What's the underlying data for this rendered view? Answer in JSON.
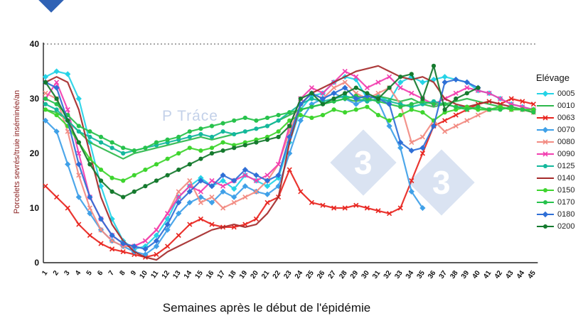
{
  "watermark": {
    "badge": "3",
    "text": "P Tráce"
  },
  "chart_data": {
    "type": "line",
    "title": "",
    "xlabel": "Semaines après le début de l'épidémie",
    "ylabel": "Porcelets sevrés/truie inséminée/an",
    "legend_title": "Elévage",
    "legend_position": "right",
    "grid": "dotted-top-only",
    "ylim": [
      0,
      40
    ],
    "yticks": [
      0,
      10,
      20,
      30,
      40
    ],
    "x": [
      1,
      2,
      3,
      4,
      5,
      6,
      7,
      8,
      9,
      10,
      11,
      12,
      13,
      14,
      15,
      16,
      17,
      18,
      19,
      20,
      21,
      22,
      23,
      24,
      25,
      26,
      27,
      28,
      29,
      30,
      31,
      32,
      33,
      34,
      35,
      36,
      37,
      38,
      39,
      40,
      41,
      42,
      43,
      44,
      45
    ],
    "series": [
      {
        "name": "0005",
        "color": "#25d3e6",
        "marker": "diamond",
        "values": [
          34,
          35,
          34.5,
          30,
          22,
          14,
          8,
          4,
          2.5,
          3,
          5,
          8,
          12,
          14,
          15.5,
          14,
          15,
          13.5,
          16,
          15,
          14,
          15.5,
          22,
          28,
          30.5,
          31,
          33,
          34,
          33.5,
          30,
          30.5,
          29.5,
          33,
          34,
          33,
          33.5,
          34,
          33.5,
          33,
          31.5,
          31,
          30,
          29,
          28.5,
          28
        ]
      },
      {
        "name": "0010",
        "color": "#2db84b",
        "marker": "line",
        "values": [
          28,
          27.5,
          26,
          24,
          22,
          21,
          20,
          19,
          20,
          20.5,
          21,
          21.5,
          22,
          22.5,
          23,
          22.5,
          23,
          23.5,
          24,
          24.5,
          25,
          26,
          27,
          28,
          28.5,
          29,
          29.5,
          30,
          29.5,
          30,
          30.5,
          30,
          29.5,
          30,
          29,
          28.5,
          29,
          29.5,
          30,
          29.5,
          29,
          28.5,
          28,
          28,
          27.5
        ]
      },
      {
        "name": "0063",
        "color": "#e8251f",
        "marker": "x",
        "values": [
          14,
          12,
          10,
          7,
          5,
          3.5,
          2.5,
          2,
          1.5,
          1,
          1.5,
          3,
          5,
          7,
          8,
          7,
          6.5,
          6.5,
          7,
          8,
          11,
          12,
          17,
          13,
          11,
          10.5,
          10,
          10,
          10.5,
          10,
          9.5,
          9,
          10,
          15,
          20,
          25,
          26,
          27,
          28,
          29,
          29.5,
          29,
          30,
          29.5,
          29
        ]
      },
      {
        "name": "0070",
        "color": "#3fa0e8",
        "marker": "diamond",
        "values": [
          26,
          24,
          18,
          12,
          9,
          6,
          4,
          3,
          2,
          1.5,
          3,
          6,
          9,
          11,
          12,
          11,
          13,
          12,
          14,
          13,
          12.5,
          14,
          20,
          26,
          29,
          30,
          31,
          30,
          29,
          30,
          29.5,
          25,
          21,
          13,
          10,
          null,
          null,
          null,
          null,
          null,
          null,
          null,
          null,
          null,
          null
        ]
      },
      {
        "name": "0080",
        "color": "#f28b82",
        "marker": "x",
        "values": [
          31,
          30,
          24,
          16,
          10,
          6,
          4,
          3,
          3,
          4,
          6,
          9,
          13,
          15,
          11,
          12,
          10,
          11,
          12,
          13,
          15,
          18,
          24,
          29,
          31,
          30,
          32,
          33,
          31,
          30,
          31,
          32,
          29,
          22,
          23,
          26,
          24,
          25,
          26,
          27,
          28,
          28.5,
          28,
          28,
          27.5
        ]
      },
      {
        "name": "0090",
        "color": "#f23fb0",
        "marker": "x",
        "values": [
          30,
          33,
          28,
          20,
          12,
          8,
          5,
          3.5,
          3,
          4,
          6,
          9,
          12,
          14,
          13,
          15,
          14,
          15,
          16,
          15,
          16,
          18,
          25,
          30,
          32,
          31,
          33,
          35,
          34,
          32,
          33,
          34,
          32,
          31,
          30,
          29,
          30,
          31,
          32,
          31.5,
          31,
          30,
          29,
          28.5,
          28
        ]
      },
      {
        "name": "0125",
        "color": "#14b89c",
        "marker": "circle",
        "values": [
          29,
          28,
          26,
          24,
          23,
          22,
          21,
          20,
          20.5,
          21,
          21.5,
          22,
          22.5,
          23,
          23.5,
          23,
          24,
          23.5,
          24,
          24.5,
          25,
          26,
          27.5,
          29,
          30,
          29.5,
          30,
          30.5,
          30,
          29.5,
          30,
          29.5,
          29,
          28.5,
          29,
          29.5,
          29,
          28.5,
          28.5,
          28,
          28,
          28.5,
          28,
          28,
          28
        ]
      },
      {
        "name": "0140",
        "color": "#a52a2a",
        "marker": "line",
        "values": [
          33,
          34,
          33,
          28,
          20,
          12,
          7,
          4,
          2,
          1,
          0.5,
          2,
          3,
          4,
          5,
          6,
          6.5,
          7,
          6.5,
          7,
          9,
          12,
          22,
          29,
          31,
          32,
          33,
          34,
          35,
          35.5,
          36,
          35,
          34,
          33.5,
          34,
          33,
          30,
          29,
          28.5,
          29,
          29.5,
          29,
          28.5,
          28,
          27.5
        ]
      },
      {
        "name": "0150",
        "color": "#3ed52e",
        "marker": "circle",
        "values": [
          28,
          27,
          25,
          22,
          19,
          17,
          15.5,
          15,
          16,
          17,
          18,
          19,
          20,
          21,
          20.5,
          21,
          22,
          21.5,
          22,
          22.5,
          23,
          24,
          26,
          27,
          26.5,
          27,
          28,
          27.5,
          28,
          28.5,
          27,
          26,
          27,
          28,
          27.5,
          26,
          27.5,
          28,
          28.5,
          28,
          28,
          28.5,
          28,
          28,
          28
        ]
      },
      {
        "name": "0170",
        "color": "#27c24c",
        "marker": "circle",
        "values": [
          30,
          29,
          27,
          25,
          24,
          23,
          22,
          21,
          20.5,
          21,
          22,
          22.5,
          23,
          24,
          24.5,
          25,
          25.5,
          26,
          26.5,
          26,
          26.5,
          27,
          27.5,
          28,
          28.5,
          29,
          29.5,
          30,
          30.5,
          30,
          29.5,
          29,
          28.5,
          29,
          29.5,
          29,
          29,
          28.5,
          28,
          28.5,
          28,
          28,
          28.5,
          28,
          27.5
        ]
      },
      {
        "name": "0180",
        "color": "#2f6fd6",
        "marker": "diamond",
        "values": [
          33,
          32,
          26,
          18,
          12,
          8,
          5,
          3.5,
          3,
          2.5,
          4,
          7,
          11,
          13,
          15,
          14,
          16,
          15,
          17,
          16,
          15,
          16,
          23,
          29,
          31,
          30,
          31,
          32,
          30,
          30.5,
          30,
          29,
          22,
          20.5,
          21,
          25,
          33,
          33.5,
          33,
          32,
          null,
          null,
          null,
          null,
          null
        ]
      },
      {
        "name": "0200",
        "color": "#157a2e",
        "marker": "circle",
        "values": [
          33,
          30,
          26,
          22,
          18,
          15,
          13,
          12,
          13,
          14,
          15,
          16,
          17,
          18,
          19,
          20,
          20.5,
          21,
          21.5,
          22,
          22.5,
          23,
          25,
          30,
          31,
          29,
          30,
          31,
          32,
          31,
          30,
          32,
          34,
          34.5,
          30,
          36,
          28,
          30,
          31,
          32,
          null,
          null,
          null,
          null,
          null
        ]
      }
    ]
  }
}
